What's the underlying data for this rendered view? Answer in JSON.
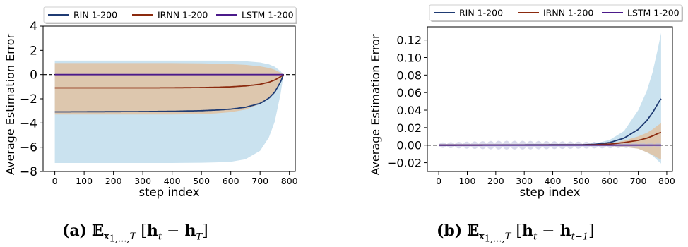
{
  "chart_data": [
    {
      "id": "a",
      "type": "line",
      "xlabel": "step index",
      "ylabel": "Average Estimation Error",
      "xlim": [
        -40,
        820
      ],
      "ylim": [
        -8,
        4
      ],
      "xticks": [
        0,
        100,
        200,
        300,
        400,
        500,
        600,
        700,
        800
      ],
      "yticks": [
        -8,
        -6,
        -4,
        -2,
        0,
        2,
        4
      ],
      "ytick_labels": [
        "−8",
        "−6",
        "−4",
        "−2",
        "0",
        "2",
        "4"
      ],
      "zero_line": true,
      "legend": [
        "RIN 1-200",
        "IRNN 1-200",
        "LSTM 1-200"
      ],
      "legend_placement": "top-center",
      "series": [
        {
          "name": "RIN 1-200",
          "color": "#1f3b73",
          "band_color": "#9ecae1",
          "band_opacity": 0.55,
          "x": [
            0,
            100,
            200,
            300,
            400,
            500,
            550,
            600,
            650,
            700,
            730,
            750,
            770,
            780
          ],
          "y": [
            -3.08,
            -3.07,
            -3.06,
            -3.05,
            -3.03,
            -2.98,
            -2.93,
            -2.85,
            -2.7,
            -2.38,
            -1.95,
            -1.45,
            -0.6,
            0
          ],
          "upper": [
            1.15,
            1.15,
            1.15,
            1.15,
            1.15,
            1.15,
            1.15,
            1.13,
            1.1,
            1.0,
            0.85,
            0.65,
            0.28,
            0
          ],
          "lower": [
            -7.3,
            -7.3,
            -7.3,
            -7.3,
            -7.3,
            -7.28,
            -7.25,
            -7.2,
            -7.0,
            -6.3,
            -5.2,
            -3.9,
            -1.6,
            0
          ]
        },
        {
          "name": "IRNN 1-200",
          "color": "#8b2a0e",
          "band_color": "#e6b98a",
          "band_opacity": 0.65,
          "x": [
            0,
            100,
            200,
            300,
            400,
            500,
            550,
            600,
            650,
            700,
            730,
            750,
            770,
            780
          ],
          "y": [
            -1.1,
            -1.1,
            -1.1,
            -1.1,
            -1.09,
            -1.07,
            -1.05,
            -1.01,
            -0.94,
            -0.8,
            -0.63,
            -0.45,
            -0.18,
            0
          ],
          "upper": [
            0.95,
            0.95,
            0.95,
            0.95,
            0.95,
            0.93,
            0.9,
            0.86,
            0.8,
            0.68,
            0.55,
            0.4,
            0.15,
            0
          ],
          "lower": [
            -3.3,
            -3.3,
            -3.3,
            -3.3,
            -3.3,
            -3.26,
            -3.2,
            -3.1,
            -2.9,
            -2.4,
            -1.9,
            -1.35,
            -0.5,
            0
          ]
        },
        {
          "name": "LSTM 1-200",
          "color": "#4b1a8a",
          "band_color": "#bcbddc",
          "band_opacity": 0.5,
          "x": [
            0,
            780
          ],
          "y": [
            0,
            0
          ],
          "upper": [
            0.05,
            0.05
          ],
          "lower": [
            -0.05,
            -0.05
          ]
        }
      ]
    },
    {
      "id": "b",
      "type": "line",
      "xlabel": "step index",
      "ylabel": "Average Estimation Error",
      "xlim": [
        -40,
        820
      ],
      "ylim": [
        -0.03,
        0.135
      ],
      "xticks": [
        0,
        100,
        200,
        300,
        400,
        500,
        600,
        700,
        800
      ],
      "yticks": [
        -0.02,
        0,
        0.02,
        0.04,
        0.06,
        0.08,
        0.1,
        0.12
      ],
      "ytick_labels": [
        "−0.02",
        "0.00",
        "0.02",
        "0.04",
        "0.06",
        "0.08",
        "0.10",
        "0.12"
      ],
      "zero_line": true,
      "legend": [
        "RIN 1-200",
        "IRNN 1-200",
        "LSTM 1-200"
      ],
      "legend_placement": "top-center",
      "series": [
        {
          "name": "RIN 1-200",
          "color": "#1f3b73",
          "band_color": "#9ecae1",
          "band_opacity": 0.55,
          "x": [
            0,
            500,
            550,
            600,
            650,
            700,
            730,
            750,
            770,
            780
          ],
          "y": [
            0,
            0.0005,
            0.001,
            0.003,
            0.008,
            0.018,
            0.028,
            0.037,
            0.048,
            0.053
          ],
          "upper": [
            0.001,
            0.001,
            0.002,
            0.006,
            0.016,
            0.04,
            0.062,
            0.083,
            0.112,
            0.128
          ],
          "lower": [
            -0.001,
            -0.001,
            -0.001,
            -0.001,
            -0.002,
            -0.004,
            -0.008,
            -0.012,
            -0.018,
            -0.021
          ]
        },
        {
          "name": "IRNN 1-200",
          "color": "#8b2a0e",
          "band_color": "#e6b98a",
          "band_opacity": 0.65,
          "x": [
            0,
            500,
            550,
            600,
            650,
            700,
            730,
            750,
            770,
            780
          ],
          "y": [
            0,
            0.0002,
            0.0005,
            0.0012,
            0.003,
            0.0055,
            0.008,
            0.0105,
            0.0135,
            0.0145
          ],
          "upper": [
            0.0005,
            0.0005,
            0.001,
            0.002,
            0.005,
            0.01,
            0.014,
            0.018,
            0.023,
            0.025
          ],
          "lower": [
            -0.0005,
            -0.0005,
            -0.0008,
            -0.001,
            -0.002,
            -0.004,
            -0.008,
            -0.011,
            -0.015,
            -0.016
          ]
        },
        {
          "name": "LSTM 1-200",
          "color": "#4b1a8a",
          "band_color": "#bcbddc",
          "band_opacity": 0.55,
          "oscillating_band": true,
          "x": [
            0,
            780
          ],
          "y": [
            0,
            0
          ],
          "band_envelope_x": [
            0,
            100,
            200,
            300,
            400,
            500,
            600,
            700,
            780
          ],
          "band_envelope": [
            0.003,
            0.004,
            0.005,
            0.005,
            0.0045,
            0.004,
            0.0035,
            0.003,
            0.0025
          ],
          "band_period": 28
        }
      ]
    }
  ],
  "captions": {
    "a": {
      "label": "(a)",
      "expr_diff_end": "h",
      "expr_sub_end": "T"
    },
    "b": {
      "label": "(b)",
      "expr_diff_end": "h",
      "expr_sub_end": "t−1"
    }
  }
}
